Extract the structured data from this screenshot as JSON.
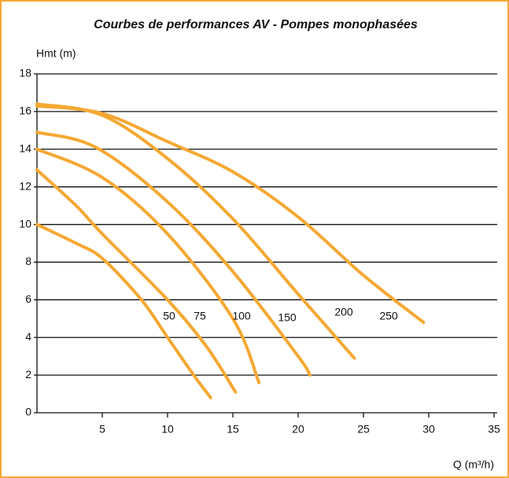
{
  "chart_data": {
    "type": "line",
    "title": "Courbes de performances AV - Pompes monophasées",
    "y_label": "Hmt (m)",
    "x_label": "Q (m³/h)",
    "xlim": [
      0,
      35
    ],
    "xticks": [
      5,
      10,
      15,
      20,
      25,
      30,
      35
    ],
    "ylim": [
      0,
      18
    ],
    "yticks": [
      0,
      2,
      4,
      6,
      8,
      10,
      12,
      14,
      16,
      18
    ],
    "grid": true,
    "series": [
      {
        "name": "50",
        "color": "#f5a833",
        "x": [
          0,
          3,
          5,
          8,
          10,
          12,
          13.3
        ],
        "values": [
          10,
          9,
          8.2,
          6,
          4,
          2,
          0.8
        ]
      },
      {
        "name": "75",
        "color": "#f5a833",
        "x": [
          0,
          3,
          5,
          10,
          13,
          15.2
        ],
        "values": [
          12.9,
          11,
          9.5,
          6,
          3.5,
          1.1
        ]
      },
      {
        "name": "100",
        "color": "#f5a833",
        "x": [
          0,
          5,
          10,
          15,
          17
        ],
        "values": [
          14,
          12.5,
          9.5,
          5,
          1.6
        ]
      },
      {
        "name": "150",
        "color": "#f5a833",
        "x": [
          0,
          4.5,
          10,
          15,
          20,
          20.9
        ],
        "values": [
          14.9,
          14.1,
          11.2,
          7.5,
          3,
          2
        ]
      },
      {
        "name": "200",
        "color": "#f5a833",
        "x": [
          0,
          5,
          10,
          15,
          20,
          24.3
        ],
        "values": [
          16.4,
          15.8,
          13.5,
          10.3,
          6.3,
          2.9
        ]
      },
      {
        "name": "250",
        "color": "#f5a833",
        "x": [
          0,
          5,
          10,
          15,
          20,
          25,
          29.6
        ],
        "values": [
          16.3,
          15.9,
          14.4,
          12.8,
          10.4,
          7.3,
          4.8
        ]
      }
    ]
  }
}
